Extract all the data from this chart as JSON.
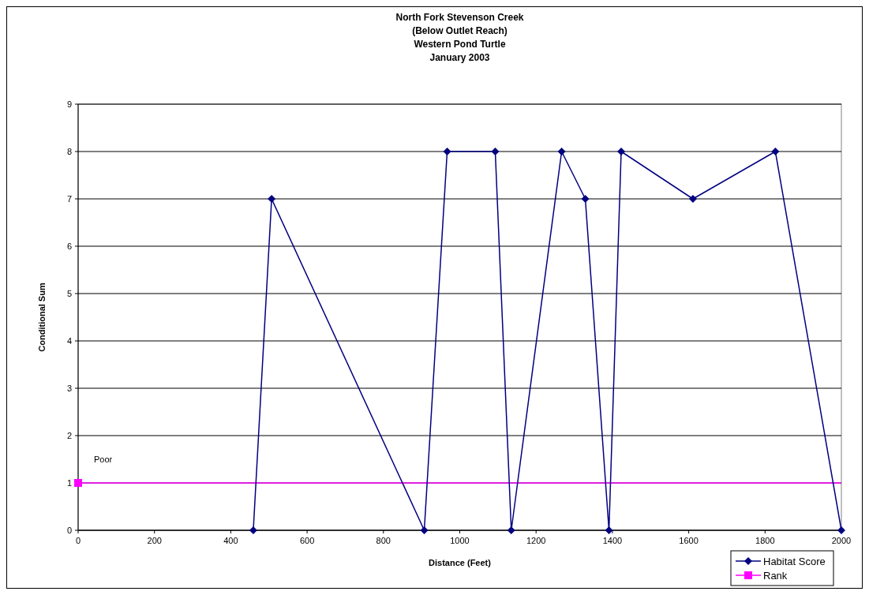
{
  "chart_data": {
    "type": "line",
    "title": "North Fork Stevenson Creek\n(Below Outlet Reach)\nWestern Pond Turtle\nJanuary 2003",
    "xlabel": "Distance (Feet)",
    "ylabel": "Conditional Sum",
    "xlim": [
      0,
      2000
    ],
    "xticks": [
      0,
      200,
      400,
      600,
      800,
      1000,
      1200,
      1400,
      1600,
      1800,
      2000
    ],
    "ylim": [
      0,
      9
    ],
    "yticks": [
      0,
      1,
      2,
      3,
      4,
      5,
      6,
      7,
      8,
      9
    ],
    "grid": "y",
    "legend": "bottom right",
    "marker": "diamond",
    "line_style": "solid",
    "series": [
      {
        "name": "Habitat Score",
        "color": "#000080",
        "x": [
          459,
          507,
          907,
          967,
          1093,
          1135,
          1267,
          1329,
          1391,
          1423,
          1611,
          1827,
          2000
        ],
        "values": [
          0,
          7,
          0,
          8,
          8,
          0,
          8,
          7,
          0,
          8,
          7,
          8,
          0
        ]
      },
      {
        "name": "Rank",
        "color": "#ff00ff",
        "marker": "square",
        "x": [
          0
        ],
        "values": [
          1
        ]
      }
    ],
    "ref_lines": [
      {
        "axis": "y",
        "value": 1,
        "color": "#ff00ff"
      }
    ],
    "annotations": [
      "Poor"
    ]
  }
}
